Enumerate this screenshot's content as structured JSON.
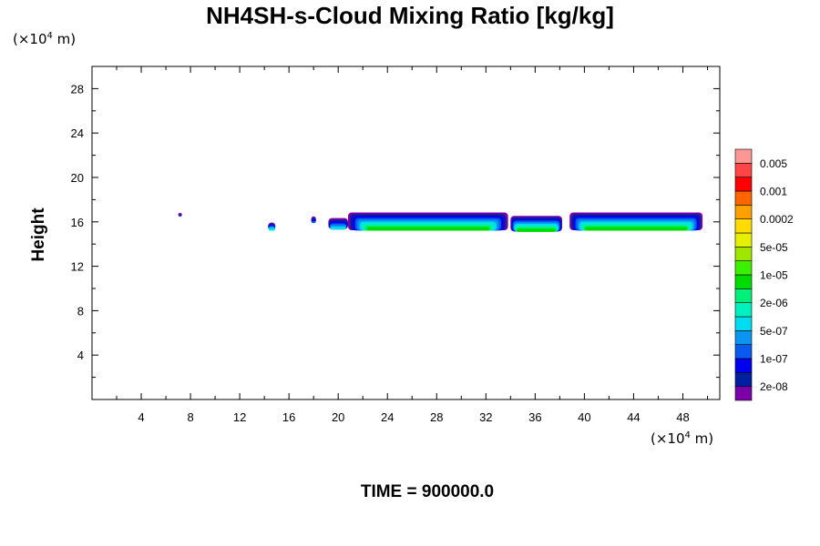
{
  "chart_data": {
    "type": "heatmap",
    "title": "NH4SH-s-Cloud Mixing Ratio [kg/kg]",
    "ylabel": "Height",
    "xlabel": "",
    "x_unit": "(×10",
    "x_unit_exp": "4",
    "x_unit_tail": " m)",
    "y_unit": "(×10",
    "y_unit_exp": "4",
    "y_unit_tail": " m)",
    "xlim": [
      0,
      51
    ],
    "ylim": [
      0,
      30
    ],
    "x_ticks": [
      4,
      8,
      12,
      16,
      20,
      24,
      28,
      32,
      36,
      40,
      44,
      48
    ],
    "y_ticks": [
      4,
      8,
      12,
      16,
      20,
      24,
      28
    ],
    "footer": "TIME = 900000.0",
    "colorbar": {
      "colors": [
        "#7a00aa",
        "#001ea0",
        "#0000f0",
        "#0a5af0",
        "#0a96f0",
        "#00dcf0",
        "#00f0c0",
        "#00f07a",
        "#00dc00",
        "#3cf000",
        "#a0e600",
        "#e6f000",
        "#ffdc00",
        "#ffa000",
        "#ff6400",
        "#ff0000",
        "#ff4646",
        "#ff9696"
      ],
      "labels": [
        "2e-08",
        "1e-07",
        "5e-07",
        "2e-06",
        "1e-05",
        "5e-05",
        "0.0002",
        "0.001",
        "0.005"
      ]
    },
    "cloud_features": [
      {
        "x": [
          7.0,
          7.3
        ],
        "y": [
          16.5,
          16.8
        ],
        "max_level": 1
      },
      {
        "x": [
          14.3,
          14.9
        ],
        "y": [
          15.2,
          15.9
        ],
        "max_level": 6
      },
      {
        "x": [
          17.8,
          18.2
        ],
        "y": [
          15.9,
          16.5
        ],
        "max_level": 3
      },
      {
        "x": [
          19.2,
          20.8
        ],
        "y": [
          15.3,
          16.3
        ],
        "max_level": 5
      },
      {
        "x": [
          20.8,
          33.8
        ],
        "y": [
          15.2,
          16.8
        ],
        "max_level": 8
      },
      {
        "x": [
          34.0,
          38.2
        ],
        "y": [
          15.1,
          16.5
        ],
        "max_level": 8
      },
      {
        "x": [
          38.8,
          49.6
        ],
        "y": [
          15.2,
          16.8
        ],
        "max_level": 8
      }
    ]
  }
}
